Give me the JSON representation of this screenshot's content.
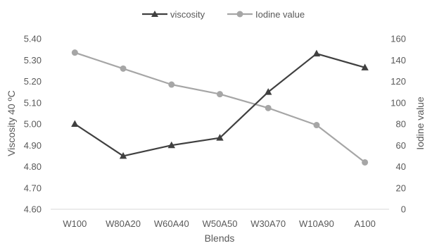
{
  "chart_data": {
    "type": "line",
    "categories": [
      "W100",
      "W80A20",
      "W60A40",
      "W50A50",
      "W30A70",
      "W10A90",
      "A100"
    ],
    "series": [
      {
        "name": "viscosity",
        "axis": "left",
        "marker": "triangle",
        "color": "#404040",
        "values": [
          5.0,
          4.85,
          4.9,
          4.935,
          5.15,
          5.33,
          5.265
        ]
      },
      {
        "name": "Iodine value",
        "axis": "right",
        "marker": "circle",
        "color": "#a6a6a6",
        "values": [
          147,
          132,
          117,
          108,
          95,
          79,
          44
        ]
      }
    ],
    "xlabel": "Blends",
    "ylabel_left": "Viscosity 40 ºC",
    "ylabel_right": "Iodine value",
    "ylim_left": [
      4.6,
      5.4
    ],
    "yticks_left": [
      "4.60",
      "4.70",
      "4.80",
      "4.90",
      "5.00",
      "5.10",
      "5.20",
      "5.30",
      "5.40"
    ],
    "ylim_right": [
      0,
      160
    ],
    "yticks_right": [
      "0",
      "20",
      "40",
      "60",
      "80",
      "100",
      "120",
      "140",
      "160"
    ],
    "legend_position": "top-center",
    "grid": false
  }
}
